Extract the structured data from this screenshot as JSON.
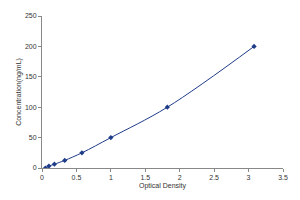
{
  "chart_data": {
    "type": "line",
    "x": [
      0.05,
      0.1,
      0.18,
      0.33,
      0.58,
      1.0,
      1.82,
      3.08
    ],
    "values": [
      0,
      3.12,
      6.25,
      12.5,
      25,
      50,
      100,
      200
    ],
    "xlabel": "Optical Density",
    "ylabel": "Concentration(ng/mL)",
    "xlim": [
      0,
      3.5
    ],
    "xticks": [
      0,
      0.5,
      1,
      1.5,
      2,
      2.5,
      3,
      3.5
    ],
    "ylim": [
      0,
      250
    ],
    "yticks": [
      0,
      50,
      100,
      150,
      200,
      250
    ],
    "color": "#1f3c88",
    "marker": "diamond",
    "line_style": "solid",
    "grid": false
  }
}
